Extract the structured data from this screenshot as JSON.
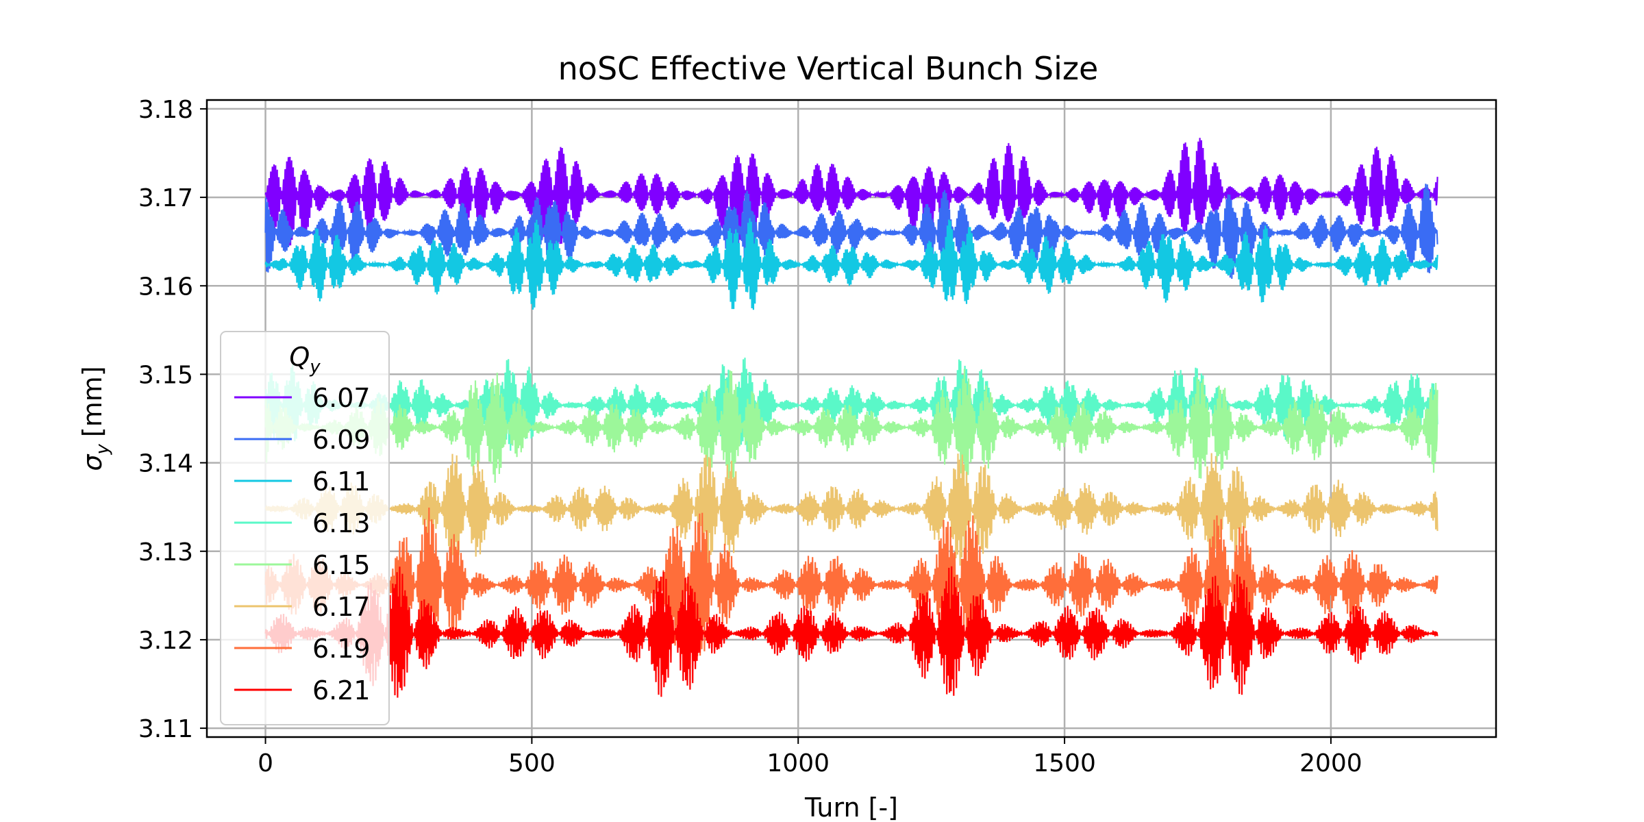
{
  "chart_data": {
    "type": "line",
    "title": "noSC Effective Vertical Bunch Size",
    "xlabel": "Turn [-]",
    "ylabel_symbol": "σ",
    "ylabel_subscript": "y",
    "ylabel_unit": "[mm]",
    "xlim": [
      -110,
      2310
    ],
    "ylim": [
      3.109,
      3.181
    ],
    "xticks": [
      0,
      500,
      1000,
      1500,
      2000
    ],
    "yticks": [
      3.11,
      3.12,
      3.13,
      3.14,
      3.15,
      3.16,
      3.17,
      3.18
    ],
    "ytick_labels": [
      "3.11",
      "3.12",
      "3.13",
      "3.14",
      "3.15",
      "3.16",
      "3.17",
      "3.18"
    ],
    "grid": true,
    "legend": {
      "title_symbol": "Q",
      "title_subscript": "y",
      "placement": "lower-left"
    },
    "x_range": [
      0,
      2200
    ],
    "series": [
      {
        "name": "6.07",
        "color": "#8000ff",
        "mean": 3.1703,
        "amplitude": 0.0068
      },
      {
        "name": "6.09",
        "color": "#3a6cf4",
        "mean": 3.166,
        "amplitude": 0.0058
      },
      {
        "name": "6.11",
        "color": "#13c8e3",
        "mean": 3.1624,
        "amplitude": 0.0058
      },
      {
        "name": "6.13",
        "color": "#5af8c8",
        "mean": 3.1465,
        "amplitude": 0.0058
      },
      {
        "name": "6.15",
        "color": "#9cf79a",
        "mean": 3.144,
        "amplitude": 0.0068
      },
      {
        "name": "6.17",
        "color": "#ecc46e",
        "mean": 3.1348,
        "amplitude": 0.0068
      },
      {
        "name": "6.19",
        "color": "#ff6e3a",
        "mean": 3.1262,
        "amplitude": 0.0088
      },
      {
        "name": "6.21",
        "color": "#ff0000",
        "mean": 3.1207,
        "amplitude": 0.0078
      }
    ]
  }
}
